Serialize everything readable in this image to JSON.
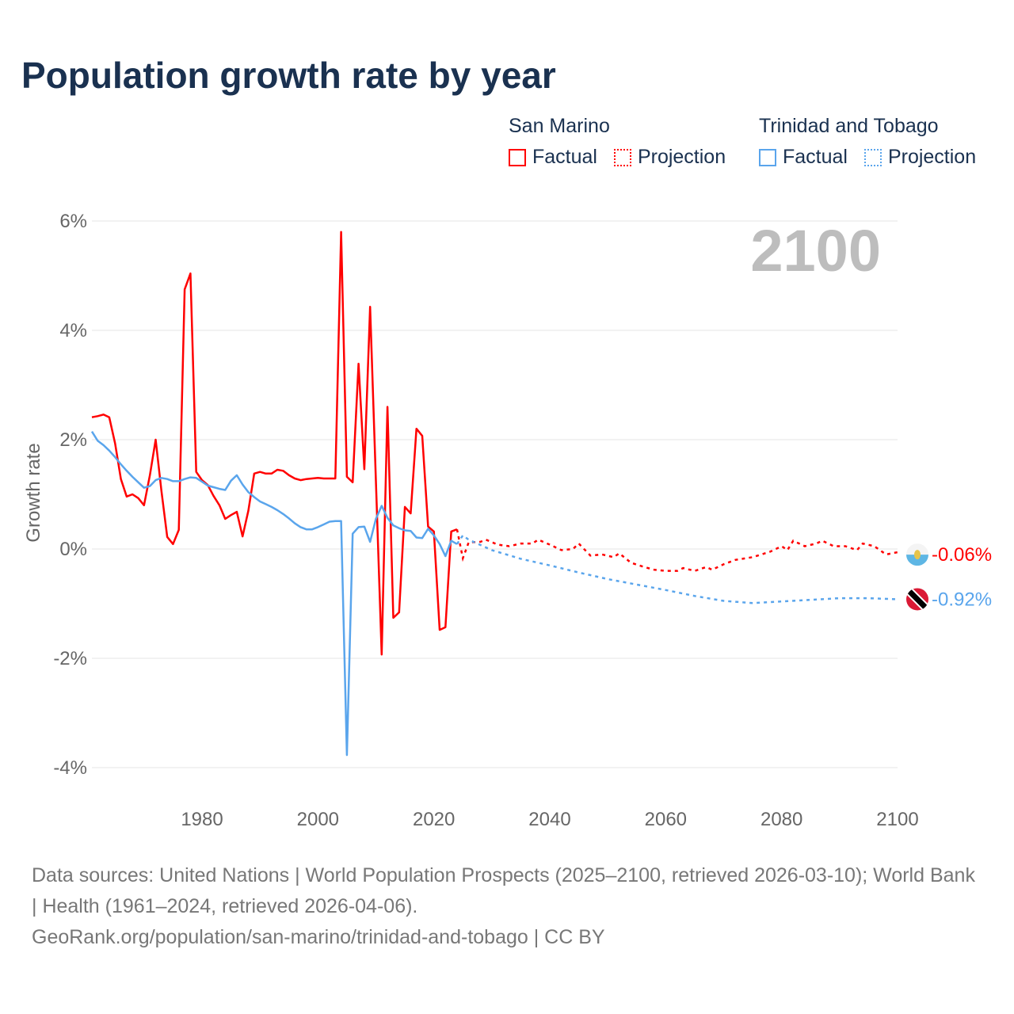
{
  "title": "Population growth rate by year",
  "legend": {
    "groups": [
      {
        "name": "San Marino",
        "factual": "Factual",
        "projection": "Projection",
        "color": "#ff0000"
      },
      {
        "name": "Trinidad and Tobago",
        "factual": "Factual",
        "projection": "Projection",
        "color": "#5aa5ec"
      }
    ]
  },
  "chart_data": {
    "type": "line",
    "title": "Population growth rate by year",
    "ylabel": "Growth rate",
    "xlabel": "",
    "year_label": "2100",
    "xlim": [
      1961,
      2100
    ],
    "ylim": [
      -4,
      6
    ],
    "x_ticks": [
      1980,
      2000,
      2020,
      2040,
      2060,
      2080,
      2100
    ],
    "y_ticks": [
      {
        "v": 6,
        "label": "6%"
      },
      {
        "v": 4,
        "label": "4%"
      },
      {
        "v": 2,
        "label": "2%"
      },
      {
        "v": 0,
        "label": "0%"
      },
      {
        "v": -2,
        "label": "-2%"
      },
      {
        "v": -4,
        "label": "-4%"
      }
    ],
    "series": [
      {
        "name": "San Marino",
        "color": "#ff0000",
        "end_label": "-0.06%",
        "factual": [
          [
            1961,
            2.41
          ],
          [
            1962,
            2.43
          ],
          [
            1963,
            2.46
          ],
          [
            1964,
            2.41
          ],
          [
            1965,
            1.93
          ],
          [
            1966,
            1.28
          ],
          [
            1967,
            0.96
          ],
          [
            1968,
            1.0
          ],
          [
            1969,
            0.93
          ],
          [
            1970,
            0.8
          ],
          [
            1971,
            1.35
          ],
          [
            1972,
            2.0
          ],
          [
            1973,
            1.06
          ],
          [
            1974,
            0.22
          ],
          [
            1975,
            0.09
          ],
          [
            1976,
            0.35
          ],
          [
            1977,
            4.75
          ],
          [
            1978,
            5.04
          ],
          [
            1979,
            1.41
          ],
          [
            1980,
            1.26
          ],
          [
            1981,
            1.17
          ],
          [
            1982,
            0.97
          ],
          [
            1983,
            0.8
          ],
          [
            1984,
            0.55
          ],
          [
            1985,
            0.62
          ],
          [
            1986,
            0.68
          ],
          [
            1987,
            0.23
          ],
          [
            1988,
            0.7
          ],
          [
            1989,
            1.38
          ],
          [
            1990,
            1.41
          ],
          [
            1991,
            1.38
          ],
          [
            1992,
            1.38
          ],
          [
            1993,
            1.45
          ],
          [
            1994,
            1.43
          ],
          [
            1995,
            1.35
          ],
          [
            1996,
            1.29
          ],
          [
            1997,
            1.26
          ],
          [
            1998,
            1.28
          ],
          [
            1999,
            1.29
          ],
          [
            2000,
            1.3
          ],
          [
            2001,
            1.29
          ],
          [
            2002,
            1.29
          ],
          [
            2003,
            1.29
          ],
          [
            2004,
            5.8
          ],
          [
            2005,
            1.32
          ],
          [
            2006,
            1.22
          ],
          [
            2007,
            3.39
          ],
          [
            2008,
            1.46
          ],
          [
            2009,
            4.43
          ],
          [
            2010,
            1.25
          ],
          [
            2011,
            -1.93
          ],
          [
            2012,
            2.6
          ],
          [
            2013,
            -1.26
          ],
          [
            2014,
            -1.16
          ],
          [
            2015,
            0.77
          ],
          [
            2016,
            0.65
          ],
          [
            2017,
            2.2
          ],
          [
            2018,
            2.07
          ],
          [
            2019,
            0.41
          ],
          [
            2020,
            0.32
          ],
          [
            2021,
            -1.48
          ],
          [
            2022,
            -1.43
          ],
          [
            2023,
            0.32
          ],
          [
            2024,
            0.36
          ]
        ],
        "projection": [
          [
            2024,
            0.36
          ],
          [
            2025,
            -0.17
          ],
          [
            2026,
            0.12
          ],
          [
            2028,
            0.13
          ],
          [
            2029,
            0.17
          ],
          [
            2031,
            0.08
          ],
          [
            2033,
            0.05
          ],
          [
            2035,
            0.1
          ],
          [
            2037,
            0.1
          ],
          [
            2038,
            0.17
          ],
          [
            2040,
            0.08
          ],
          [
            2042,
            -0.02
          ],
          [
            2044,
            0.0
          ],
          [
            2045,
            0.1
          ],
          [
            2047,
            -0.12
          ],
          [
            2049,
            -0.1
          ],
          [
            2051,
            -0.15
          ],
          [
            2052,
            -0.08
          ],
          [
            2054,
            -0.25
          ],
          [
            2056,
            -0.32
          ],
          [
            2058,
            -0.38
          ],
          [
            2060,
            -0.4
          ],
          [
            2062,
            -0.4
          ],
          [
            2063,
            -0.35
          ],
          [
            2065,
            -0.4
          ],
          [
            2067,
            -0.33
          ],
          [
            2068,
            -0.38
          ],
          [
            2070,
            -0.28
          ],
          [
            2072,
            -0.2
          ],
          [
            2075,
            -0.15
          ],
          [
            2078,
            -0.05
          ],
          [
            2080,
            0.05
          ],
          [
            2081,
            -0.02
          ],
          [
            2082,
            0.15
          ],
          [
            2084,
            0.05
          ],
          [
            2086,
            0.1
          ],
          [
            2087,
            0.15
          ],
          [
            2089,
            0.05
          ],
          [
            2091,
            0.05
          ],
          [
            2093,
            -0.02
          ],
          [
            2094,
            0.1
          ],
          [
            2096,
            0.05
          ],
          [
            2098,
            -0.1
          ],
          [
            2100,
            -0.06
          ]
        ]
      },
      {
        "name": "Trinidad and Tobago",
        "color": "#5aa5ec",
        "end_label": "-0.92%",
        "factual": [
          [
            1961,
            2.15
          ],
          [
            1962,
            1.98
          ],
          [
            1963,
            1.9
          ],
          [
            1964,
            1.8
          ],
          [
            1965,
            1.68
          ],
          [
            1966,
            1.55
          ],
          [
            1967,
            1.43
          ],
          [
            1968,
            1.32
          ],
          [
            1969,
            1.22
          ],
          [
            1970,
            1.12
          ],
          [
            1971,
            1.15
          ],
          [
            1972,
            1.26
          ],
          [
            1973,
            1.3
          ],
          [
            1974,
            1.28
          ],
          [
            1975,
            1.24
          ],
          [
            1976,
            1.24
          ],
          [
            1977,
            1.28
          ],
          [
            1978,
            1.31
          ],
          [
            1979,
            1.3
          ],
          [
            1980,
            1.23
          ],
          [
            1981,
            1.16
          ],
          [
            1982,
            1.13
          ],
          [
            1983,
            1.1
          ],
          [
            1984,
            1.08
          ],
          [
            1985,
            1.25
          ],
          [
            1986,
            1.35
          ],
          [
            1987,
            1.18
          ],
          [
            1988,
            1.04
          ],
          [
            1989,
            0.95
          ],
          [
            1990,
            0.87
          ],
          [
            1991,
            0.82
          ],
          [
            1992,
            0.77
          ],
          [
            1993,
            0.71
          ],
          [
            1994,
            0.64
          ],
          [
            1995,
            0.56
          ],
          [
            1996,
            0.47
          ],
          [
            1997,
            0.4
          ],
          [
            1998,
            0.36
          ],
          [
            1999,
            0.36
          ],
          [
            2000,
            0.4
          ],
          [
            2001,
            0.45
          ],
          [
            2002,
            0.5
          ],
          [
            2003,
            0.51
          ],
          [
            2004,
            0.51
          ],
          [
            2005,
            -3.77
          ],
          [
            2006,
            0.28
          ],
          [
            2007,
            0.4
          ],
          [
            2008,
            0.41
          ],
          [
            2009,
            0.13
          ],
          [
            2010,
            0.55
          ],
          [
            2011,
            0.79
          ],
          [
            2012,
            0.57
          ],
          [
            2013,
            0.43
          ],
          [
            2014,
            0.38
          ],
          [
            2015,
            0.34
          ],
          [
            2016,
            0.33
          ],
          [
            2017,
            0.21
          ],
          [
            2018,
            0.2
          ],
          [
            2019,
            0.37
          ],
          [
            2020,
            0.25
          ],
          [
            2021,
            0.09
          ],
          [
            2022,
            -0.13
          ],
          [
            2023,
            0.15
          ],
          [
            2024,
            0.09
          ]
        ],
        "projection": [
          [
            2024,
            0.09
          ],
          [
            2025,
            0.25
          ],
          [
            2026,
            0.17
          ],
          [
            2030,
            -0.02
          ],
          [
            2035,
            -0.18
          ],
          [
            2040,
            -0.3
          ],
          [
            2045,
            -0.43
          ],
          [
            2050,
            -0.55
          ],
          [
            2055,
            -0.65
          ],
          [
            2060,
            -0.75
          ],
          [
            2065,
            -0.86
          ],
          [
            2070,
            -0.95
          ],
          [
            2075,
            -0.99
          ],
          [
            2080,
            -0.96
          ],
          [
            2085,
            -0.93
          ],
          [
            2090,
            -0.9
          ],
          [
            2095,
            -0.9
          ],
          [
            2100,
            -0.92
          ]
        ]
      }
    ]
  },
  "footer": {
    "sources": "Data sources: United Nations | World Population Prospects (2025–2100, retrieved 2026-03-10); World Bank | Health (1961–2024, retrieved 2026-04-06).",
    "link": "GeoRank.org/population/san-marino/trinidad-and-tobago | CC BY"
  }
}
